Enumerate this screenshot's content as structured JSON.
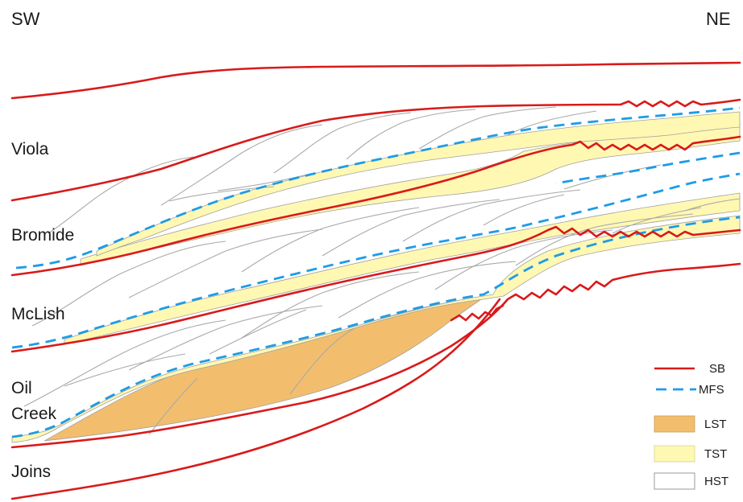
{
  "directions": {
    "left": "SW",
    "right": "NE"
  },
  "units": {
    "viola": "Viola",
    "bromide": "Bromide",
    "mclish": "McLish",
    "oil_creek_line1": "Oil",
    "oil_creek_line2": "Creek",
    "joins": "Joins"
  },
  "legend": {
    "sb": {
      "label": "SB",
      "color": "#d91a1a"
    },
    "mfs": {
      "label": "MFS",
      "color": "#1e9ce6"
    },
    "lst": {
      "label": "LST",
      "color": "#f2be6e"
    },
    "tst": {
      "label": "TST",
      "color": "#fff8b3"
    },
    "hst": {
      "label": "HST",
      "color": "#ffffff"
    }
  }
}
